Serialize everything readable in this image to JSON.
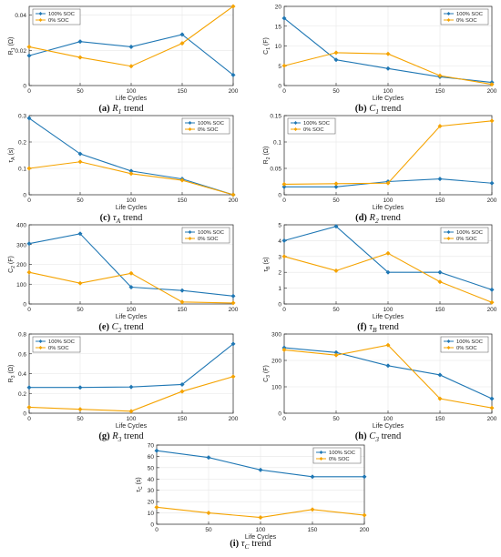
{
  "colors": {
    "soc100": "#1f77b4",
    "soc0": "#f5a300",
    "axis": "#262626",
    "grid": "#e6e6e6"
  },
  "legend_labels": [
    "100% SOC",
    "0% SOC"
  ],
  "chart_data": [
    {
      "id": "a",
      "type": "line",
      "caption": {
        "letter": "(a)",
        "symbol": "R",
        "sub": "1",
        "tail": " trend"
      },
      "ylabel": "R1 (Ω)",
      "ylabel_main": "R",
      "ylabel_sub": "1",
      "ylabel_unit": " (Ω)",
      "xlabel": "Life Cycles",
      "xlim": [
        0,
        200
      ],
      "xticks": [
        0,
        50,
        100,
        150,
        200
      ],
      "xtick_labels": [
        "0",
        "50",
        "100",
        "150",
        "200"
      ],
      "ylim": [
        0,
        0.045
      ],
      "yticks": [
        0,
        0.02,
        0.04
      ],
      "ytick_labels": [
        "0",
        "0.02",
        "0.04"
      ],
      "legend_position": "top-left",
      "x": [
        0,
        50,
        100,
        150,
        200
      ],
      "series": [
        {
          "name": "100% SOC",
          "values": [
            0.017,
            0.025,
            0.022,
            0.029,
            0.006
          ]
        },
        {
          "name": "0% SOC",
          "values": [
            0.022,
            0.016,
            0.011,
            0.024,
            0.045
          ]
        }
      ]
    },
    {
      "id": "b",
      "type": "line",
      "caption": {
        "letter": "(b)",
        "symbol": "C",
        "sub": "1",
        "tail": " trend"
      },
      "ylabel": "C1 (F)",
      "ylabel_main": "C",
      "ylabel_sub": "1",
      "ylabel_unit": " (F)",
      "xlabel": "Life Cycles",
      "xlim": [
        0,
        200
      ],
      "xticks": [
        0,
        50,
        100,
        150,
        200
      ],
      "xtick_labels": [
        "0",
        "50",
        "100",
        "150",
        "200"
      ],
      "ylim": [
        0,
        20
      ],
      "yticks": [
        0,
        5,
        10,
        15,
        20
      ],
      "ytick_labels": [
        "0",
        "5",
        "10",
        "15",
        "20"
      ],
      "legend_position": "top-right",
      "x": [
        0,
        50,
        100,
        150,
        200
      ],
      "series": [
        {
          "name": "100% SOC",
          "values": [
            17,
            6.5,
            4.3,
            2.2,
            0.8
          ]
        },
        {
          "name": "0% SOC",
          "values": [
            5,
            8.3,
            8,
            2.5,
            0.3
          ]
        }
      ]
    },
    {
      "id": "c",
      "type": "line",
      "caption": {
        "letter": "(c)",
        "symbol": "τ",
        "sub": "A",
        "tail": " trend"
      },
      "ylabel": "τA (s)",
      "ylabel_main": "τ",
      "ylabel_sub": "A",
      "ylabel_unit": " (s)",
      "xlabel": "Life Cycles",
      "xlim": [
        0,
        200
      ],
      "xticks": [
        0,
        50,
        100,
        150,
        200
      ],
      "xtick_labels": [
        "0",
        "50",
        "100",
        "150",
        "200"
      ],
      "ylim": [
        0,
        0.3
      ],
      "yticks": [
        0,
        0.1,
        0.2,
        0.3
      ],
      "ytick_labels": [
        "0",
        "0.1",
        "0.2",
        "0.3"
      ],
      "legend_position": "top-right",
      "x": [
        0,
        50,
        100,
        150,
        200
      ],
      "series": [
        {
          "name": "100% SOC",
          "values": [
            0.29,
            0.155,
            0.09,
            0.06,
            0.0
          ]
        },
        {
          "name": "0% SOC",
          "values": [
            0.1,
            0.125,
            0.08,
            0.055,
            0.0
          ]
        }
      ]
    },
    {
      "id": "d",
      "type": "line",
      "caption": {
        "letter": "(d)",
        "symbol": "R",
        "sub": "2",
        "tail": " trend"
      },
      "ylabel": "R2 (Ω)",
      "ylabel_main": "R",
      "ylabel_sub": "2",
      "ylabel_unit": " (Ω)",
      "xlabel": "Life Cycles",
      "xlim": [
        0,
        200
      ],
      "xticks": [
        0,
        50,
        100,
        150,
        200
      ],
      "xtick_labels": [
        "0",
        "50",
        "100",
        "150",
        "200"
      ],
      "ylim": [
        0,
        0.15
      ],
      "yticks": [
        0,
        0.05,
        0.1,
        0.15
      ],
      "ytick_labels": [
        "0",
        "0.05",
        "0.1",
        "0.15"
      ],
      "legend_position": "top-left",
      "x": [
        0,
        50,
        100,
        150,
        200
      ],
      "series": [
        {
          "name": "100% SOC",
          "values": [
            0.015,
            0.015,
            0.025,
            0.03,
            0.022
          ]
        },
        {
          "name": "0% SOC",
          "values": [
            0.02,
            0.021,
            0.022,
            0.13,
            0.14
          ]
        }
      ]
    },
    {
      "id": "e",
      "type": "line",
      "caption": {
        "letter": "(e)",
        "symbol": "C",
        "sub": "2",
        "tail": " trend"
      },
      "ylabel": "C2 (F)",
      "ylabel_main": "C",
      "ylabel_sub": "2",
      "ylabel_unit": " (F)",
      "xlabel": "Life Cycles",
      "xlim": [
        0,
        200
      ],
      "xticks": [
        0,
        50,
        100,
        150,
        200
      ],
      "xtick_labels": [
        "0",
        "50",
        "100",
        "150",
        "200"
      ],
      "ylim": [
        0,
        400
      ],
      "yticks": [
        0,
        100,
        200,
        300,
        400
      ],
      "ytick_labels": [
        "0",
        "100",
        "200",
        "300",
        "400"
      ],
      "legend_position": "top-right",
      "x": [
        0,
        50,
        100,
        150,
        200
      ],
      "series": [
        {
          "name": "100% SOC",
          "values": [
            305,
            355,
            85,
            68,
            40
          ]
        },
        {
          "name": "0% SOC",
          "values": [
            160,
            105,
            155,
            10,
            5
          ]
        }
      ]
    },
    {
      "id": "f",
      "type": "line",
      "caption": {
        "letter": "(f)",
        "symbol": "τ",
        "sub": "B",
        "tail": " trend"
      },
      "ylabel": "τB (s)",
      "ylabel_main": "τ",
      "ylabel_sub": "B",
      "ylabel_unit": " (s)",
      "xlabel": "Life Cycles",
      "xlim": [
        0,
        200
      ],
      "xticks": [
        0,
        50,
        100,
        150,
        200
      ],
      "xtick_labels": [
        "0",
        "50",
        "100",
        "150",
        "200"
      ],
      "ylim": [
        0,
        5
      ],
      "yticks": [
        0,
        1,
        2,
        3,
        4,
        5
      ],
      "ytick_labels": [
        "0",
        "1",
        "2",
        "3",
        "4",
        "5"
      ],
      "legend_position": "top-right",
      "x": [
        0,
        50,
        100,
        150,
        200
      ],
      "series": [
        {
          "name": "100% SOC",
          "values": [
            4,
            4.9,
            2,
            2,
            0.9
          ]
        },
        {
          "name": "0% SOC",
          "values": [
            3,
            2.1,
            3.2,
            1.4,
            0.1
          ]
        }
      ]
    },
    {
      "id": "g",
      "type": "line",
      "caption": {
        "letter": "(g)",
        "symbol": "R",
        "sub": "3",
        "tail": " trend"
      },
      "ylabel": "R3 (Ω)",
      "ylabel_main": "R",
      "ylabel_sub": "3",
      "ylabel_unit": " (Ω)",
      "xlabel": "Life Cycles",
      "xlim": [
        0,
        200
      ],
      "xticks": [
        0,
        50,
        100,
        150,
        200
      ],
      "xtick_labels": [
        "0",
        "50",
        "100",
        "150",
        "200"
      ],
      "ylim": [
        0,
        0.8
      ],
      "yticks": [
        0,
        0.2,
        0.4,
        0.6,
        0.8
      ],
      "ytick_labels": [
        "0",
        "0.2",
        "0.4",
        "0.6",
        "0.8"
      ],
      "legend_position": "top-left",
      "x": [
        0,
        50,
        100,
        150,
        200
      ],
      "series": [
        {
          "name": "100% SOC",
          "values": [
            0.26,
            0.26,
            0.265,
            0.29,
            0.7
          ]
        },
        {
          "name": "0% SOC",
          "values": [
            0.06,
            0.04,
            0.02,
            0.22,
            0.37
          ]
        }
      ]
    },
    {
      "id": "h",
      "type": "line",
      "caption": {
        "letter": "(h)",
        "symbol": "C",
        "sub": "3",
        "tail": " trend"
      },
      "ylabel": "C3 (F)",
      "ylabel_main": "C",
      "ylabel_sub": "3",
      "ylabel_unit": " (F)",
      "xlabel": "Life Cycles",
      "xlim": [
        0,
        200
      ],
      "xticks": [
        0,
        50,
        100,
        150,
        200
      ],
      "xtick_labels": [
        "0",
        "50",
        "100",
        "150",
        "200"
      ],
      "ylim": [
        0,
        300
      ],
      "yticks": [
        0,
        100,
        200,
        300
      ],
      "ytick_labels": [
        "0",
        "100",
        "200",
        "300"
      ],
      "legend_position": "top-right",
      "x": [
        0,
        50,
        100,
        150,
        200
      ],
      "series": [
        {
          "name": "100% SOC",
          "values": [
            248,
            230,
            180,
            145,
            55
          ]
        },
        {
          "name": "0% SOC",
          "values": [
            240,
            220,
            258,
            55,
            20
          ]
        }
      ]
    },
    {
      "id": "i",
      "type": "line",
      "caption": {
        "letter": "(i)",
        "symbol": "τ",
        "sub": "C",
        "tail": " trend"
      },
      "ylabel": "τC (s)",
      "ylabel_main": "τ",
      "ylabel_sub": "C",
      "ylabel_unit": " (s)",
      "xlabel": "Life Cycles",
      "xlim": [
        0,
        200
      ],
      "xticks": [
        0,
        50,
        100,
        150,
        200
      ],
      "xtick_labels": [
        "0",
        "50",
        "100",
        "150",
        "200"
      ],
      "ylim": [
        0,
        70
      ],
      "yticks": [
        0,
        10,
        20,
        30,
        40,
        50,
        60,
        70
      ],
      "ytick_labels": [
        "0",
        "10",
        "20",
        "30",
        "40",
        "50",
        "60",
        "70"
      ],
      "legend_position": "top-right",
      "x": [
        0,
        50,
        100,
        150,
        200
      ],
      "series": [
        {
          "name": "100% SOC",
          "values": [
            65,
            59,
            48,
            42,
            42
          ]
        },
        {
          "name": "0% SOC",
          "values": [
            15,
            10,
            6,
            13,
            8
          ]
        }
      ]
    }
  ]
}
